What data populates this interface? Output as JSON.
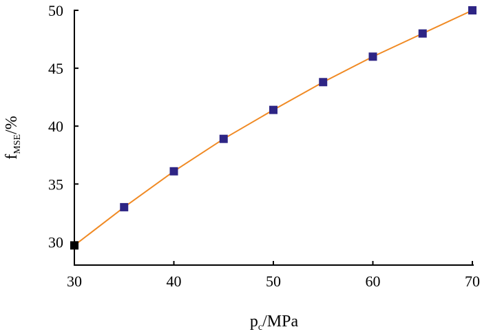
{
  "chart_data": {
    "type": "line",
    "x": [
      30,
      35,
      40,
      45,
      50,
      55,
      60,
      65,
      70
    ],
    "series": [
      {
        "values": [
          29.7,
          33.0,
          36.1,
          38.9,
          41.4,
          43.8,
          46.0,
          48.0,
          50.0
        ],
        "line_color": "#f08a24",
        "marker_color": "#2e2585",
        "first_marker_color": "#000000"
      }
    ],
    "xlabel": {
      "main": "p",
      "sub": "c",
      "rest": "/MPa"
    },
    "ylabel": {
      "main": "f",
      "sub": "MSE",
      "rest": "/%"
    },
    "xlim": [
      30,
      70
    ],
    "ylim": [
      28,
      50
    ],
    "xticks": [
      30,
      40,
      50,
      60,
      70
    ],
    "yticks": [
      30,
      35,
      40,
      45,
      50
    ],
    "grid": false,
    "legend": "none"
  }
}
